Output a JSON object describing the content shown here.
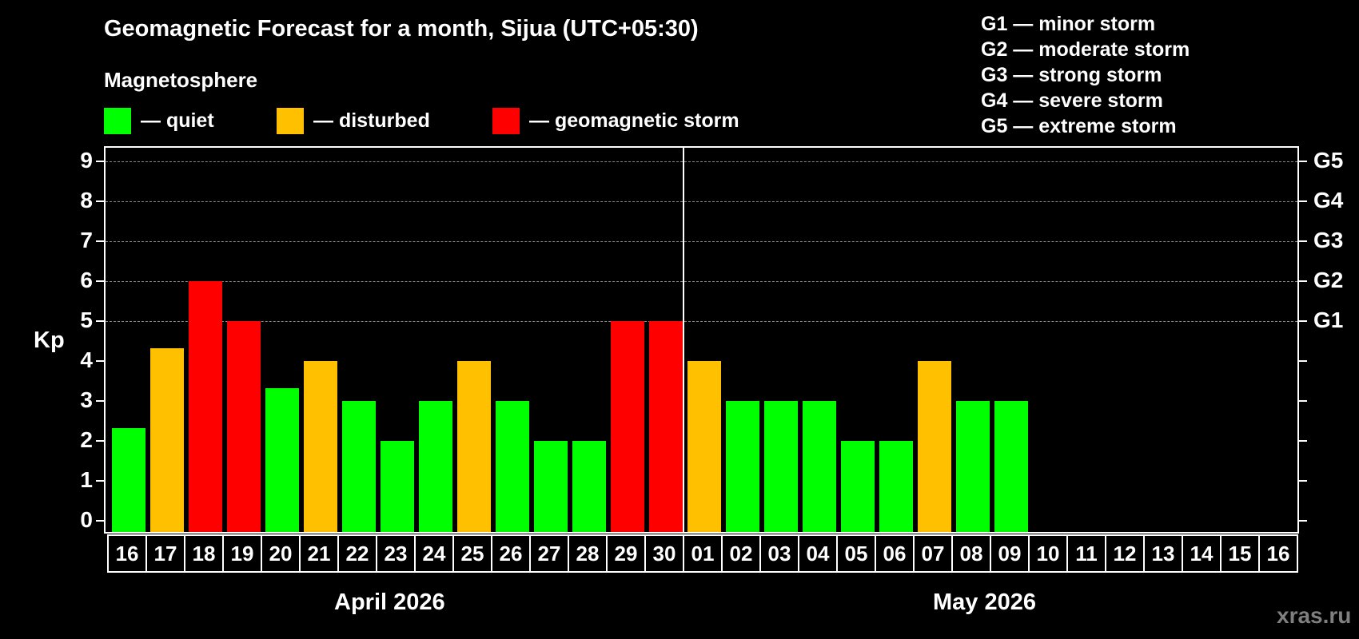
{
  "title": "Geomagnetic Forecast for a month, Sijua (UTC+05:30)",
  "subtitle": "Magnetosphere",
  "legend": [
    {
      "label": "— quiet",
      "color": "#00ff00"
    },
    {
      "label": "— disturbed",
      "color": "#ffc000"
    },
    {
      "label": "— geomagnetic storm",
      "color": "#ff0000"
    }
  ],
  "g_legend": [
    "G1 — minor storm",
    "G2 — moderate storm",
    "G3 — strong storm",
    "G4 — severe storm",
    "G5 — extreme storm"
  ],
  "y_axis_label": "Kp",
  "y_ticks": [
    "0",
    "1",
    "2",
    "3",
    "4",
    "5",
    "6",
    "7",
    "8",
    "9"
  ],
  "g_ticks": [
    "G1",
    "G2",
    "G3",
    "G4",
    "G5"
  ],
  "months": [
    "April 2026",
    "May 2026"
  ],
  "watermark": "xras.ru",
  "chart_data": {
    "type": "bar",
    "title": "Geomagnetic Forecast for a month, Sijua (UTC+05:30)",
    "xlabel": "",
    "ylabel": "Kp",
    "ylim": [
      0,
      9
    ],
    "grid": "dashed horizontal at Kp 5-9",
    "right_axis": {
      "5": "G1",
      "6": "G2",
      "7": "G3",
      "8": "G4",
      "9": "G5"
    },
    "categories": [
      "16",
      "17",
      "18",
      "19",
      "20",
      "21",
      "22",
      "23",
      "24",
      "25",
      "26",
      "27",
      "28",
      "29",
      "30",
      "01",
      "02",
      "03",
      "04",
      "05",
      "06",
      "07",
      "08",
      "09",
      "10",
      "11",
      "12",
      "13",
      "14",
      "15",
      "16"
    ],
    "month_groups": [
      {
        "label": "April 2026",
        "from": "16",
        "to": "30"
      },
      {
        "label": "May 2026",
        "from": "01",
        "to": "16"
      }
    ],
    "values": [
      2.33,
      4.33,
      6,
      5,
      3.33,
      4,
      3,
      2,
      3,
      4,
      3,
      2,
      2,
      5,
      5,
      4,
      3,
      3,
      3,
      2,
      2,
      4,
      3,
      3,
      null,
      null,
      null,
      null,
      null,
      null,
      null
    ],
    "status": [
      "quiet",
      "disturbed",
      "storm",
      "storm",
      "quiet",
      "disturbed",
      "quiet",
      "quiet",
      "quiet",
      "disturbed",
      "quiet",
      "quiet",
      "quiet",
      "storm",
      "storm",
      "disturbed",
      "quiet",
      "quiet",
      "quiet",
      "quiet",
      "quiet",
      "disturbed",
      "quiet",
      "quiet",
      null,
      null,
      null,
      null,
      null,
      null,
      null
    ],
    "colors": {
      "quiet": "#00ff00",
      "disturbed": "#ffc000",
      "storm": "#ff0000"
    }
  }
}
